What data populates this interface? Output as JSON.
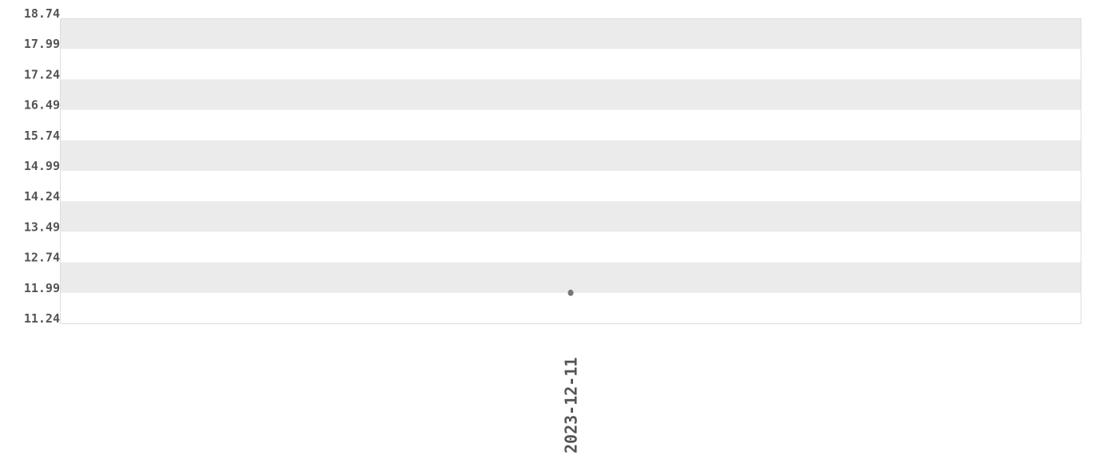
{
  "chart_data": {
    "type": "scatter",
    "title": "",
    "xlabel": "",
    "ylabel": "",
    "x": [
      "2023-12-11"
    ],
    "values": [
      11.99
    ],
    "ylim": [
      11.24,
      18.74
    ],
    "yticks": [
      "11.24",
      "11.99",
      "12.74",
      "13.49",
      "14.24",
      "14.99",
      "15.74",
      "16.49",
      "17.24",
      "17.99",
      "18.74"
    ],
    "xticks": [
      "2023-12-11"
    ],
    "grid": "alternating horizontal bands",
    "colors": {
      "band": "#ebebeb",
      "point": "#777777",
      "text": "#555555",
      "border": "#dddddd"
    }
  }
}
